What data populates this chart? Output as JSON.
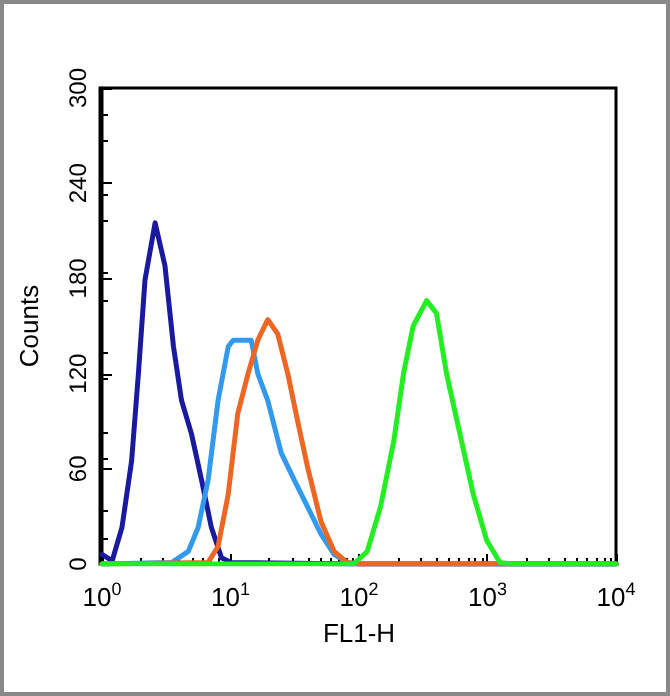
{
  "chart_data": {
    "type": "line",
    "xlabel": "FL1-H",
    "ylabel": "Counts",
    "log": "x",
    "grid": false,
    "marker": "none",
    "line_style": "solid",
    "xlim": [
      1,
      10000
    ],
    "xticks": [
      {
        "value": 1,
        "label": "10$^{0}$"
      },
      {
        "value": 10,
        "label": "10$^{1}$"
      },
      {
        "value": 100,
        "label": "10$^{2}$"
      },
      {
        "value": 1000,
        "label": "10$^{3}$"
      },
      {
        "value": 10000,
        "label": "10$^{4}$"
      }
    ],
    "ylim": [
      0,
      300
    ],
    "yticks": [
      0,
      60,
      120,
      180,
      240,
      300
    ],
    "series": [
      {
        "color": "#1a1aa0",
        "x": [
          1,
          1.2,
          1.43,
          1.7,
          1.92,
          2.16,
          2.59,
          3.09,
          3.6,
          4.16,
          4.97,
          5.95,
          7.1,
          8.5,
          10.1,
          100,
          10000
        ],
        "values": [
          6,
          2,
          23,
          65,
          120,
          179,
          215,
          188,
          137,
          103,
          82,
          53,
          23,
          4,
          1,
          0,
          0
        ]
      },
      {
        "color": "#3399ee",
        "x": [
          1,
          3.5,
          4.7,
          5.6,
          6.7,
          8,
          9.6,
          10.5,
          14.5,
          16.3,
          19.5,
          24.8,
          31.3,
          39.8,
          50.5,
          64,
          81,
          103,
          10000
        ],
        "values": [
          0,
          1,
          8,
          23,
          53,
          103,
          137,
          141,
          141,
          120,
          103,
          70,
          53,
          36,
          19,
          6,
          1,
          0,
          0
        ]
      },
      {
        "color": "#ee6622",
        "x": [
          1,
          6.7,
          8,
          9.6,
          11.4,
          13.7,
          16.3,
          19.5,
          23.3,
          27.9,
          33.1,
          39.8,
          50.5,
          64,
          81,
          103,
          10000
        ],
        "values": [
          0,
          1,
          11,
          44,
          95,
          120,
          141,
          154,
          145,
          120,
          91,
          61,
          27,
          8,
          1,
          0,
          0
        ]
      },
      {
        "color": "#22ee22",
        "x": [
          1,
          91,
          116,
          147,
          187,
          222,
          264,
          336,
          401,
          480,
          610,
          775,
          985,
          1250,
          1570,
          10000
        ],
        "values": [
          0,
          0,
          8,
          36,
          78,
          120,
          150,
          166,
          158,
          120,
          82,
          44,
          15,
          1,
          0,
          0
        ]
      }
    ]
  }
}
